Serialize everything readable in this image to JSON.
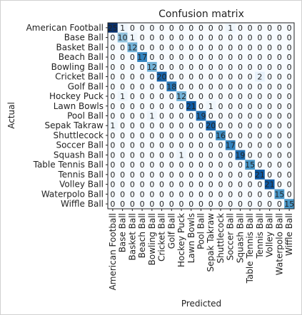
{
  "chart_data": {
    "type": "heatmap",
    "title": "Confusion matrix",
    "xlabel": "Predicted",
    "ylabel": "Actual",
    "classes": [
      "American Football",
      "Base Ball",
      "Basket Ball",
      "Beach Ball",
      "Bowling Ball",
      "Cricket Ball",
      "Golf Ball",
      "Hockey Puck",
      "Lawn Bowls",
      "Pool Ball",
      "Sepak Takraw",
      "Shuttlecock",
      "Soccer Ball",
      "Squash Ball",
      "Table Tennis Ball",
      "Tennis Ball",
      "Volley Ball",
      "Waterpolo Ball",
      "Wiffle Ball"
    ],
    "matrix": [
      [
        25,
        1,
        0,
        0,
        0,
        0,
        0,
        0,
        0,
        0,
        0,
        0,
        1,
        0,
        0,
        0,
        0,
        0,
        0
      ],
      [
        0,
        10,
        1,
        0,
        0,
        0,
        0,
        0,
        0,
        0,
        0,
        0,
        0,
        0,
        0,
        0,
        0,
        0,
        0
      ],
      [
        0,
        0,
        12,
        0,
        0,
        0,
        0,
        0,
        0,
        0,
        0,
        0,
        0,
        0,
        0,
        0,
        0,
        0,
        0
      ],
      [
        0,
        0,
        0,
        17,
        0,
        0,
        0,
        0,
        0,
        0,
        0,
        0,
        0,
        0,
        0,
        0,
        0,
        0,
        0
      ],
      [
        0,
        0,
        0,
        0,
        12,
        0,
        0,
        0,
        0,
        0,
        0,
        0,
        0,
        0,
        0,
        0,
        0,
        0,
        0
      ],
      [
        0,
        0,
        0,
        0,
        0,
        20,
        0,
        0,
        0,
        0,
        0,
        0,
        0,
        0,
        0,
        2,
        0,
        0,
        0
      ],
      [
        0,
        0,
        0,
        0,
        0,
        0,
        18,
        0,
        0,
        0,
        0,
        0,
        0,
        0,
        0,
        0,
        0,
        0,
        0
      ],
      [
        0,
        1,
        0,
        0,
        0,
        0,
        0,
        12,
        0,
        0,
        0,
        0,
        0,
        0,
        0,
        0,
        0,
        0,
        0
      ],
      [
        0,
        0,
        0,
        0,
        0,
        0,
        0,
        0,
        21,
        0,
        1,
        0,
        0,
        0,
        0,
        0,
        0,
        0,
        0
      ],
      [
        0,
        0,
        0,
        0,
        1,
        0,
        0,
        0,
        0,
        19,
        0,
        0,
        0,
        0,
        0,
        0,
        0,
        0,
        0
      ],
      [
        1,
        0,
        0,
        0,
        0,
        0,
        0,
        0,
        0,
        0,
        20,
        0,
        0,
        0,
        0,
        0,
        0,
        0,
        0
      ],
      [
        0,
        0,
        0,
        0,
        0,
        0,
        0,
        0,
        0,
        0,
        0,
        16,
        0,
        0,
        0,
        0,
        0,
        0,
        0
      ],
      [
        0,
        0,
        0,
        0,
        0,
        0,
        0,
        0,
        0,
        0,
        0,
        0,
        17,
        0,
        0,
        0,
        0,
        0,
        0
      ],
      [
        0,
        0,
        0,
        0,
        0,
        0,
        0,
        1,
        0,
        0,
        0,
        0,
        0,
        19,
        0,
        0,
        0,
        0,
        0
      ],
      [
        0,
        0,
        0,
        0,
        0,
        0,
        0,
        0,
        0,
        0,
        0,
        0,
        0,
        0,
        15,
        0,
        0,
        0,
        0
      ],
      [
        0,
        0,
        0,
        0,
        0,
        0,
        0,
        0,
        0,
        0,
        0,
        0,
        0,
        0,
        0,
        21,
        0,
        0,
        0
      ],
      [
        0,
        0,
        0,
        0,
        0,
        0,
        0,
        0,
        0,
        0,
        0,
        0,
        0,
        0,
        0,
        0,
        21,
        0,
        0
      ],
      [
        0,
        0,
        0,
        0,
        0,
        0,
        0,
        0,
        0,
        0,
        0,
        0,
        0,
        0,
        0,
        0,
        0,
        15,
        0
      ],
      [
        0,
        0,
        0,
        0,
        0,
        0,
        0,
        0,
        0,
        0,
        0,
        0,
        0,
        0,
        0,
        0,
        0,
        0,
        15
      ]
    ],
    "colormap": "Blues",
    "grid": false
  }
}
